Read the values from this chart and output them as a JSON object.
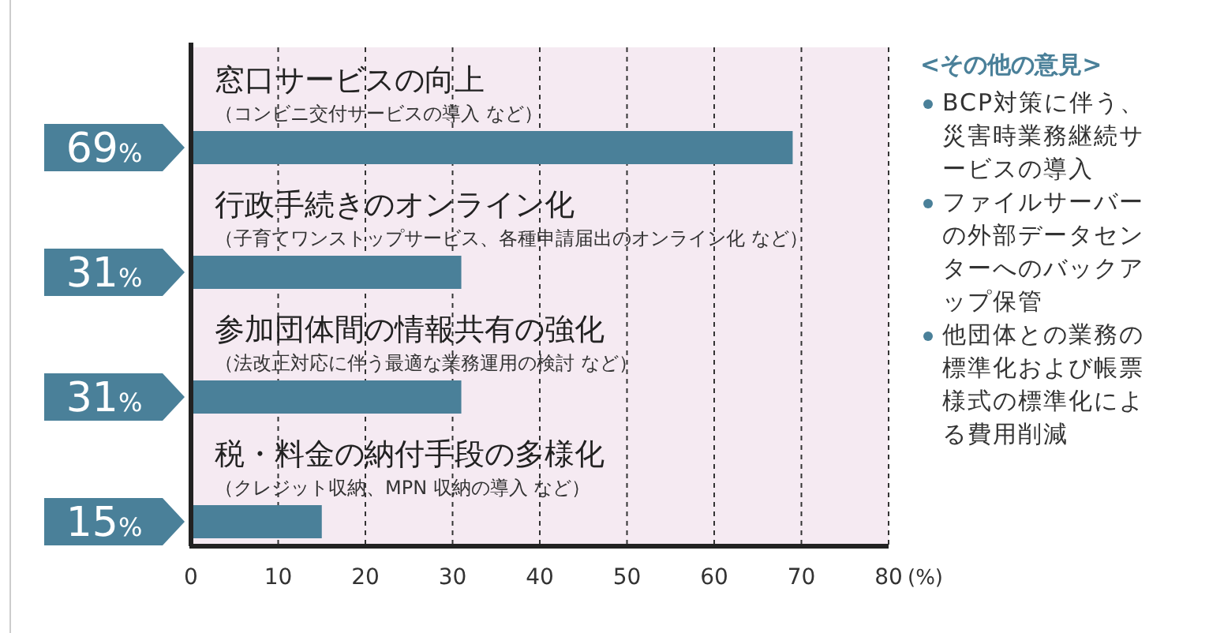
{
  "chart_data": {
    "type": "bar",
    "orientation": "horizontal",
    "categories": [
      "窓口サービスの向上",
      "行政手続きのオンライン化",
      "参加団体間の情報共有の強化",
      "税・料金の納付手段の多様化"
    ],
    "values": [
      69,
      31,
      31,
      15
    ],
    "color": "#4a8099",
    "value_labels": [
      "69%",
      "31%",
      "31%",
      "15%"
    ],
    "xlim": [
      0,
      80
    ],
    "xticks": [
      0,
      10,
      20,
      30,
      40,
      50,
      60,
      70,
      80
    ],
    "xlabel": "(%)",
    "grid": "x",
    "annotations": [
      "（コンビニ交付サービスの導入 など）",
      "（子育てワンストップサービス、各種申請届出のオンライン化 など）",
      "（法改正対応に伴う最適な業務運用の検討 など）",
      "（クレジット収納、MPN 収納の導入 など）",
      "<その他の意見>",
      "BCP対策に伴う、災害時業務継続サービスの導入",
      "ファイルサーバーの外部データセンターへのバックアップ保管",
      "他団体との業務の標準化および帳票様式の標準化による費用削減"
    ]
  }
}
